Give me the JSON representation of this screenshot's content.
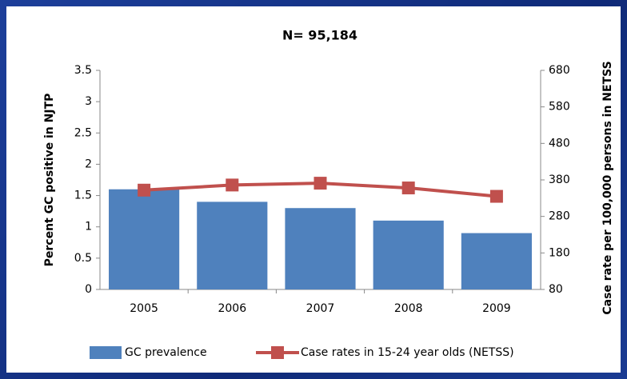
{
  "chart_data": {
    "type": "bar-line",
    "title": "N= 95,184",
    "ylabel": "Percent GC positive in NJTP",
    "y2label": "Case rate per 100,000 persons in NETSS",
    "categories": [
      "2005",
      "2006",
      "2007",
      "2008",
      "2009"
    ],
    "series": [
      {
        "name": "GC prevalence",
        "type": "bar",
        "color": "#4f81bd",
        "values": [
          1.6,
          1.4,
          1.3,
          1.1,
          0.9
        ]
      },
      {
        "name": "Case rates in 15-24 year olds (NETSS)",
        "type": "line",
        "axis": "y2",
        "color": "#c0504d",
        "values": [
          352,
          366,
          371,
          358,
          335
        ]
      }
    ],
    "ylim": [
      0,
      3.5
    ],
    "yticks": [
      0,
      0.5,
      1,
      1.5,
      2,
      2.5,
      3,
      3.5
    ],
    "y2lim": [
      80,
      680
    ],
    "y2ticks": [
      80,
      180,
      280,
      380,
      480,
      580,
      680
    ]
  }
}
